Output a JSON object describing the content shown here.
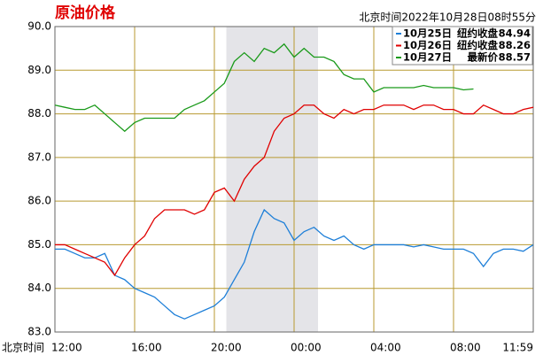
{
  "chart_data": {
    "type": "line",
    "title": "原油价格",
    "subtitle": "北京时间2022年10月28日08时55分",
    "xlabel": "北京时间",
    "xlim": [
      0,
      24
    ],
    "ylim": [
      83,
      90
    ],
    "xticks": [
      {
        "value": 0,
        "label": "12:00"
      },
      {
        "value": 4,
        "label": "16:00"
      },
      {
        "value": 8,
        "label": "20:00"
      },
      {
        "value": 12,
        "label": "00:00"
      },
      {
        "value": 16,
        "label": "04:00"
      },
      {
        "value": 20,
        "label": "08:00"
      },
      {
        "value": 24,
        "label": "11:59"
      }
    ],
    "yticks": [
      {
        "value": 83,
        "label": "83.0"
      },
      {
        "value": 84,
        "label": "84.0"
      },
      {
        "value": 85,
        "label": "85.0"
      },
      {
        "value": 86,
        "label": "86.0"
      },
      {
        "value": 87,
        "label": "87.0"
      },
      {
        "value": 88,
        "label": "88.0"
      },
      {
        "value": 89,
        "label": "89.0"
      },
      {
        "value": 90,
        "label": "90.0"
      }
    ],
    "grid": true,
    "highlight_x": [
      8.6,
      13.2
    ],
    "series": [
      {
        "name": "10月25日",
        "note": "纽约收盘",
        "last": "84.94",
        "color": "#1e7fd8",
        "x": [
          0,
          0.5,
          1,
          1.5,
          2,
          2.5,
          3,
          3.5,
          4,
          4.5,
          5,
          5.5,
          6,
          6.5,
          7,
          7.5,
          8,
          8.5,
          9,
          9.5,
          10,
          10.5,
          11,
          11.5,
          12,
          12.5,
          13,
          13.5,
          14,
          14.5,
          15,
          15.5,
          16,
          16.5,
          17,
          17.5,
          18,
          18.5,
          19,
          19.5,
          20,
          20.5,
          21,
          21.5,
          22,
          22.5,
          23,
          23.5,
          24
        ],
        "values": [
          84.9,
          84.9,
          84.8,
          84.7,
          84.7,
          84.8,
          84.3,
          84.2,
          84.0,
          83.9,
          83.8,
          83.6,
          83.4,
          83.3,
          83.4,
          83.5,
          83.6,
          83.8,
          84.2,
          84.6,
          85.3,
          85.8,
          85.6,
          85.5,
          85.1,
          85.3,
          85.4,
          85.2,
          85.1,
          85.2,
          85.0,
          84.9,
          85.0,
          85.0,
          85.0,
          85.0,
          84.95,
          85.0,
          84.95,
          84.9,
          84.9,
          84.9,
          84.8,
          84.5,
          84.8,
          84.9,
          84.9,
          84.85,
          85.0
        ]
      },
      {
        "name": "10月26日",
        "note": "纽约收盘",
        "last": "88.26",
        "color": "#e00000",
        "x": [
          0,
          0.5,
          1,
          1.5,
          2,
          2.5,
          3,
          3.5,
          4,
          4.5,
          5,
          5.5,
          6,
          6.5,
          7,
          7.5,
          8,
          8.5,
          9,
          9.5,
          10,
          10.5,
          11,
          11.5,
          12,
          12.5,
          13,
          13.5,
          14,
          14.5,
          15,
          15.5,
          16,
          16.5,
          17,
          17.5,
          18,
          18.5,
          19,
          19.5,
          20,
          20.5,
          21,
          21.5,
          22,
          22.5,
          23,
          23.5,
          24
        ],
        "values": [
          85.0,
          85.0,
          84.9,
          84.8,
          84.7,
          84.6,
          84.3,
          84.7,
          85.0,
          85.2,
          85.6,
          85.8,
          85.8,
          85.8,
          85.7,
          85.8,
          86.2,
          86.3,
          86.0,
          86.5,
          86.8,
          87.0,
          87.6,
          87.9,
          88.0,
          88.2,
          88.2,
          88.0,
          87.9,
          88.1,
          88.0,
          88.1,
          88.1,
          88.2,
          88.2,
          88.2,
          88.1,
          88.2,
          88.2,
          88.1,
          88.1,
          88.0,
          88.0,
          88.2,
          88.1,
          88.0,
          88.0,
          88.1,
          88.15
        ]
      },
      {
        "name": "10月27日",
        "note": "最新价",
        "last": "88.57",
        "color": "#1a9a1a",
        "x": [
          0,
          0.5,
          1,
          1.5,
          2,
          2.5,
          3,
          3.5,
          4,
          4.5,
          5,
          5.5,
          6,
          6.5,
          7,
          7.5,
          8,
          8.5,
          9,
          9.5,
          10,
          10.5,
          11,
          11.5,
          12,
          12.5,
          13,
          13.5,
          14,
          14.5,
          15,
          15.5,
          16,
          16.5,
          17,
          17.5,
          18,
          18.5,
          19,
          19.5,
          20,
          20.5,
          21
        ],
        "values": [
          88.2,
          88.15,
          88.1,
          88.1,
          88.2,
          88.0,
          87.8,
          87.6,
          87.8,
          87.9,
          87.9,
          87.9,
          87.9,
          88.1,
          88.2,
          88.3,
          88.5,
          88.7,
          89.2,
          89.4,
          89.2,
          89.5,
          89.4,
          89.6,
          89.3,
          89.5,
          89.3,
          89.3,
          89.2,
          88.9,
          88.8,
          88.8,
          88.5,
          88.6,
          88.6,
          88.6,
          88.6,
          88.65,
          88.6,
          88.6,
          88.6,
          88.55,
          88.57
        ]
      }
    ]
  }
}
